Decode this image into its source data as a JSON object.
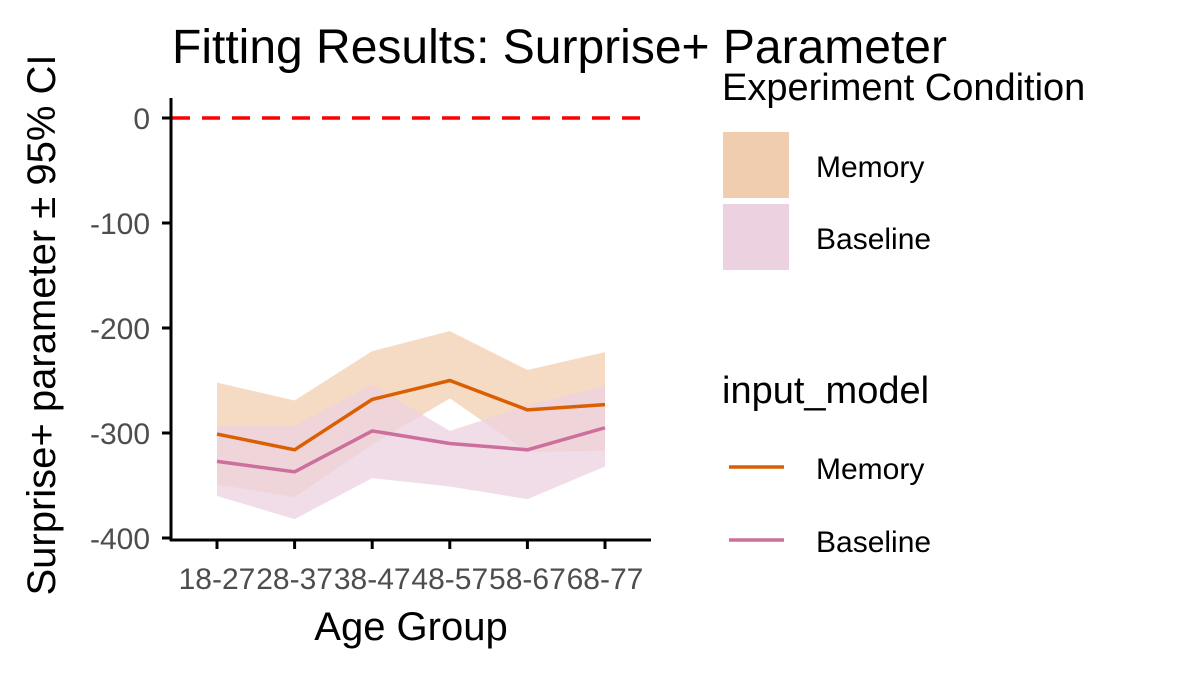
{
  "chart_data": {
    "type": "line",
    "title": "Fitting Results: Surprise+ Parameter",
    "xlabel": "Age Group",
    "ylabel": "Surprise+ parameter ± 95% CI",
    "categories": [
      "18-27",
      "28-37",
      "38-47",
      "48-57",
      "58-67",
      "68-77"
    ],
    "ylim": [
      -400,
      15
    ],
    "yticks": [
      0,
      -100,
      -200,
      -300,
      -400
    ],
    "ytick_labels": [
      "0",
      "-100",
      "-200",
      "-300",
      "-400"
    ],
    "reference_line": {
      "y": 0,
      "color": "#ff0000",
      "style": "dashed"
    },
    "grid": false,
    "series": [
      {
        "name": "Memory",
        "values": [
          -301,
          -316,
          -268,
          -250,
          -278,
          -273
        ],
        "lower": [
          -349,
          -361,
          -311,
          -267,
          -318,
          -317
        ],
        "upper": [
          -252,
          -269,
          -222,
          -203,
          -240,
          -223
        ],
        "line_color": "#d95f02",
        "ribbon_color": "#f1cdb0"
      },
      {
        "name": "Baseline",
        "values": [
          -327,
          -337,
          -298,
          -310,
          -316,
          -295
        ],
        "lower": [
          -360,
          -382,
          -343,
          -351,
          -363,
          -332
        ],
        "upper": [
          -293,
          -293,
          -254,
          -298,
          -274,
          -255
        ],
        "line_color": "#cc6f9c",
        "ribbon_color": "#ecd2e0"
      }
    ],
    "legends": [
      {
        "title": "Experiment Condition",
        "kind": "fill",
        "entries": [
          "Memory",
          "Baseline"
        ]
      },
      {
        "title": "input_model",
        "kind": "line",
        "entries": [
          "Memory",
          "Baseline"
        ]
      }
    ],
    "legend_placement": "right"
  }
}
